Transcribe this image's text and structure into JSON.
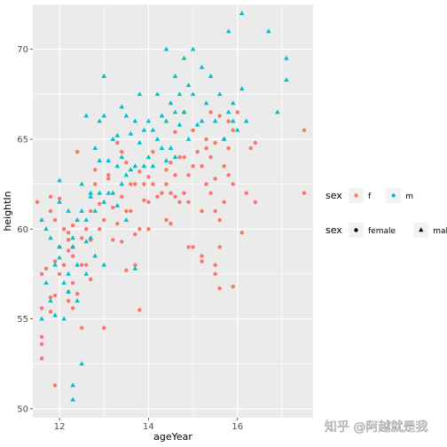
{
  "watermark": "知乎 @阿越就是我",
  "chart_data": {
    "type": "scatter",
    "xlabel": "ageYear",
    "ylabel": "heightIn",
    "xlim": [
      11.4,
      17.7
    ],
    "ylim": [
      49.5,
      72.5
    ],
    "x_ticks": [
      12,
      14,
      16
    ],
    "y_ticks": [
      50,
      55,
      60,
      65,
      70
    ],
    "grid": true,
    "legend_position": "right",
    "colors": {
      "f": "#f8766d",
      "m": "#00bfc4",
      "panel": "#ebebeb",
      "grid": "#ffffff",
      "legend_key_bg": "#f2f2f2"
    },
    "legends": [
      {
        "title": "sex",
        "entries": [
          {
            "label": "f",
            "shape": "circle",
            "color": "#f8766d"
          },
          {
            "label": "m",
            "shape": "circle",
            "color": "#00bfc4"
          }
        ]
      },
      {
        "title": "sex",
        "entries": [
          {
            "label": "female",
            "shape": "circle",
            "color": "#000000"
          },
          {
            "label": "male",
            "shape": "triangle",
            "color": "#000000"
          }
        ]
      }
    ],
    "series": [
      {
        "name": "f",
        "shape": "circle",
        "color": "#f8766d",
        "points": [
          [
            11.5,
            61.5
          ],
          [
            11.6,
            57.5
          ],
          [
            11.6,
            55.6
          ],
          [
            11.6,
            54.0
          ],
          [
            11.6,
            53.6
          ],
          [
            11.6,
            52.8
          ],
          [
            11.8,
            61.8
          ],
          [
            11.8,
            61.0
          ],
          [
            11.7,
            57.8
          ],
          [
            11.8,
            56.2
          ],
          [
            11.8,
            55.4
          ],
          [
            11.9,
            60.5
          ],
          [
            11.9,
            58.2
          ],
          [
            11.9,
            56.3
          ],
          [
            11.9,
            51.3
          ],
          [
            12.0,
            61.7
          ],
          [
            12.0,
            59.0
          ],
          [
            12.0,
            57.5
          ],
          [
            12.1,
            60.0
          ],
          [
            12.1,
            58.0
          ],
          [
            12.2,
            59.8
          ],
          [
            12.2,
            59.4
          ],
          [
            12.2,
            58.8
          ],
          [
            12.2,
            56.5
          ],
          [
            12.2,
            56.0
          ],
          [
            12.3,
            60.2
          ],
          [
            12.3,
            59.0
          ],
          [
            12.3,
            58.5
          ],
          [
            12.3,
            57.0
          ],
          [
            12.3,
            55.6
          ],
          [
            12.4,
            64.3
          ],
          [
            12.4,
            56.4
          ],
          [
            12.5,
            59.5
          ],
          [
            12.5,
            58.0
          ],
          [
            12.5,
            54.5
          ],
          [
            12.6,
            60.0
          ],
          [
            12.6,
            58.0
          ],
          [
            12.7,
            61.0
          ],
          [
            12.7,
            59.4
          ],
          [
            12.7,
            57.2
          ],
          [
            12.8,
            63.3
          ],
          [
            12.8,
            62.5
          ],
          [
            12.9,
            61.4
          ],
          [
            12.9,
            60.0
          ],
          [
            13.0,
            60.5
          ],
          [
            13.0,
            54.5
          ],
          [
            13.1,
            63.0
          ],
          [
            13.1,
            62.8
          ],
          [
            13.2,
            61.2
          ],
          [
            13.2,
            59.4
          ],
          [
            13.3,
            64.8
          ],
          [
            13.3,
            60.3
          ],
          [
            13.4,
            64.3
          ],
          [
            13.4,
            61.8
          ],
          [
            13.4,
            59.3
          ],
          [
            13.5,
            63.7
          ],
          [
            13.5,
            61.0
          ],
          [
            13.5,
            57.7
          ],
          [
            13.6,
            62.5
          ],
          [
            13.6,
            61.0
          ],
          [
            13.7,
            62.5
          ],
          [
            13.7,
            59.7
          ],
          [
            13.7,
            58.0
          ],
          [
            13.8,
            63.2
          ],
          [
            13.8,
            60.0
          ],
          [
            13.8,
            55.5
          ],
          [
            13.9,
            62.5
          ],
          [
            13.9,
            61.6
          ],
          [
            14.0,
            62.9
          ],
          [
            14.0,
            61.5
          ],
          [
            14.0,
            60.0
          ],
          [
            14.1,
            64.3
          ],
          [
            14.1,
            62.5
          ],
          [
            14.2,
            61.8
          ],
          [
            14.3,
            62.0
          ],
          [
            14.4,
            63.3
          ],
          [
            14.4,
            62.5
          ],
          [
            14.4,
            60.5
          ],
          [
            14.5,
            63.7
          ],
          [
            14.5,
            62.0
          ],
          [
            14.5,
            60.3
          ],
          [
            14.6,
            65.4
          ],
          [
            14.6,
            63.0
          ],
          [
            14.6,
            61.8
          ],
          [
            14.7,
            64.0
          ],
          [
            14.7,
            61.5
          ],
          [
            14.8,
            66.5
          ],
          [
            14.8,
            64.0
          ],
          [
            14.8,
            62.0
          ],
          [
            14.9,
            63.0
          ],
          [
            14.9,
            61.5
          ],
          [
            15.0,
            65.5
          ],
          [
            15.0,
            63.5
          ],
          [
            15.0,
            59.0
          ],
          [
            15.1,
            64.3
          ],
          [
            15.2,
            63.5
          ],
          [
            15.2,
            61.0
          ],
          [
            15.2,
            58.5
          ],
          [
            15.3,
            65.0
          ],
          [
            15.3,
            64.5
          ],
          [
            15.3,
            62.5
          ],
          [
            15.4,
            66.5
          ],
          [
            15.4,
            64.0
          ],
          [
            15.4,
            62.0
          ],
          [
            15.5,
            64.8
          ],
          [
            15.5,
            62.8
          ],
          [
            15.5,
            61.0
          ],
          [
            15.6,
            66.3
          ],
          [
            15.6,
            60.5
          ],
          [
            15.6,
            59.0
          ],
          [
            15.7,
            65.0
          ],
          [
            15.7,
            63.5
          ],
          [
            15.7,
            61.5
          ],
          [
            15.8,
            66.0
          ],
          [
            15.8,
            64.5
          ],
          [
            15.8,
            63.0
          ],
          [
            15.9,
            65.5
          ],
          [
            15.9,
            62.5
          ],
          [
            15.9,
            56.8
          ],
          [
            16.0,
            66.5
          ],
          [
            16.1,
            59.8
          ],
          [
            16.2,
            62.0
          ],
          [
            16.3,
            64.5
          ],
          [
            16.4,
            64.8
          ],
          [
            16.4,
            61.5
          ],
          [
            17.5,
            65.5
          ],
          [
            17.5,
            62.0
          ],
          [
            15.5,
            57.5
          ],
          [
            15.6,
            56.7
          ],
          [
            15.5,
            58.0
          ],
          [
            14.9,
            59.0
          ],
          [
            15.2,
            58.2
          ]
        ]
      },
      {
        "name": "m",
        "shape": "triangle",
        "color": "#00bfc4",
        "points": [
          [
            11.6,
            60.5
          ],
          [
            11.6,
            55.0
          ],
          [
            11.7,
            60.0
          ],
          [
            11.7,
            57.0
          ],
          [
            11.8,
            59.5
          ],
          [
            11.8,
            56.0
          ],
          [
            11.9,
            58.0
          ],
          [
            11.9,
            55.2
          ],
          [
            12.0,
            62.7
          ],
          [
            12.0,
            61.5
          ],
          [
            12.0,
            58.4
          ],
          [
            12.1,
            57.0
          ],
          [
            12.1,
            55.0
          ],
          [
            12.2,
            61.0
          ],
          [
            12.2,
            57.5
          ],
          [
            12.2,
            56.5
          ],
          [
            12.3,
            59.5
          ],
          [
            12.3,
            50.5
          ],
          [
            12.3,
            51.3
          ],
          [
            12.4,
            60.5
          ],
          [
            12.4,
            58.0
          ],
          [
            12.4,
            56.0
          ],
          [
            12.5,
            62.5
          ],
          [
            12.5,
            61.0
          ],
          [
            12.5,
            52.5
          ],
          [
            12.6,
            66.3
          ],
          [
            12.6,
            60.5
          ],
          [
            12.6,
            59.3
          ],
          [
            12.7,
            62.0
          ],
          [
            12.7,
            61.8
          ],
          [
            12.7,
            59.5
          ],
          [
            12.8,
            64.5
          ],
          [
            12.8,
            61.0
          ],
          [
            12.8,
            58.5
          ],
          [
            12.9,
            66.0
          ],
          [
            12.9,
            63.8
          ],
          [
            12.9,
            62.0
          ],
          [
            13.0,
            68.5
          ],
          [
            13.0,
            66.3
          ],
          [
            13.0,
            61.5
          ],
          [
            13.0,
            58.0
          ],
          [
            13.1,
            63.8
          ],
          [
            13.1,
            62.0
          ],
          [
            13.2,
            65.0
          ],
          [
            13.2,
            62.0
          ],
          [
            13.3,
            65.2
          ],
          [
            13.3,
            63.5
          ],
          [
            13.3,
            61.3
          ],
          [
            13.4,
            66.8
          ],
          [
            13.4,
            64.0
          ],
          [
            13.4,
            62.5
          ],
          [
            13.5,
            66.3
          ],
          [
            13.5,
            63.0
          ],
          [
            13.5,
            60.5
          ],
          [
            13.6,
            65.3
          ],
          [
            13.6,
            63.3
          ],
          [
            13.7,
            66.0
          ],
          [
            13.7,
            63.5
          ],
          [
            13.7,
            57.8
          ],
          [
            13.8,
            67.5
          ],
          [
            13.8,
            64.8
          ],
          [
            13.9,
            65.5
          ],
          [
            13.9,
            63.5
          ],
          [
            14.0,
            66.0
          ],
          [
            14.0,
            64.0
          ],
          [
            14.1,
            65.5
          ],
          [
            14.1,
            63.5
          ],
          [
            14.2,
            67.5
          ],
          [
            14.2,
            65.0
          ],
          [
            14.3,
            66.3
          ],
          [
            14.3,
            64.5
          ],
          [
            14.4,
            70.0
          ],
          [
            14.4,
            66.0
          ],
          [
            14.4,
            63.8
          ],
          [
            14.5,
            67.0
          ],
          [
            14.5,
            64.5
          ],
          [
            14.6,
            68.5
          ],
          [
            14.6,
            66.5
          ],
          [
            14.6,
            64.0
          ],
          [
            14.7,
            67.5
          ],
          [
            14.7,
            65.8
          ],
          [
            14.8,
            69.5
          ],
          [
            14.8,
            66.5
          ],
          [
            14.9,
            68.0
          ],
          [
            14.9,
            65.0
          ],
          [
            15.0,
            70.0
          ],
          [
            15.0,
            67.5
          ],
          [
            15.1,
            65.8
          ],
          [
            15.2,
            69.0
          ],
          [
            15.2,
            66.0
          ],
          [
            15.3,
            67.0
          ],
          [
            15.4,
            68.5
          ],
          [
            15.5,
            66.0
          ],
          [
            15.6,
            67.5
          ],
          [
            15.7,
            65.0
          ],
          [
            15.8,
            71.0
          ],
          [
            15.8,
            66.5
          ],
          [
            15.9,
            67.0
          ],
          [
            16.0,
            65.5
          ],
          [
            16.1,
            72.0
          ],
          [
            16.1,
            67.8
          ],
          [
            16.2,
            66.0
          ],
          [
            16.7,
            71.0
          ],
          [
            16.9,
            66.5
          ],
          [
            17.1,
            69.5
          ],
          [
            17.1,
            68.3
          ],
          [
            15.9,
            66.0
          ],
          [
            12.3,
            59.0
          ],
          [
            12.0,
            59.0
          ],
          [
            12.6,
            57.5
          ]
        ]
      }
    ]
  }
}
